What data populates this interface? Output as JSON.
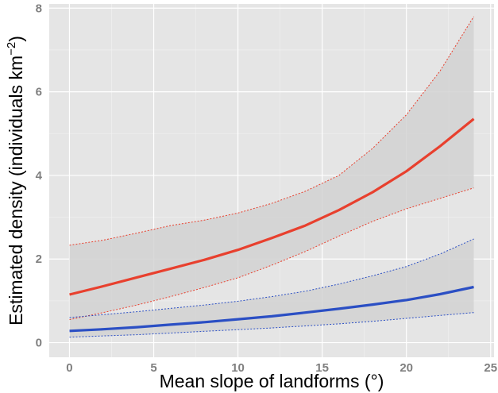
{
  "chart_data": {
    "type": "line",
    "title": "",
    "xlabel": "Mean slope of landforms (°)",
    "ylabel": "Estimated density (individuals km",
    "ylabel_superscript": "−2",
    "ylabel_close": ")",
    "xlim": [
      -1.2,
      25.2
    ],
    "ylim": [
      -0.35,
      8.1
    ],
    "x_ticks": [
      0,
      5,
      10,
      15,
      20,
      25
    ],
    "y_ticks": [
      0,
      2,
      4,
      6,
      8
    ],
    "grid": true,
    "legend": "none",
    "panel_background": "#e5e5e5",
    "band_color": "#d2d2d2",
    "series": [
      {
        "color": "#e8402e",
        "x": [
          0,
          2,
          4,
          6,
          8,
          10,
          12,
          14,
          16,
          18,
          20,
          22,
          24
        ],
        "y": [
          1.15,
          1.35,
          1.56,
          1.77,
          1.98,
          2.22,
          2.5,
          2.8,
          3.17,
          3.6,
          4.1,
          4.7,
          5.35
        ],
        "lower": [
          0.55,
          0.72,
          0.9,
          1.1,
          1.32,
          1.55,
          1.85,
          2.18,
          2.55,
          2.9,
          3.2,
          3.45,
          3.7
        ],
        "upper": [
          2.33,
          2.45,
          2.62,
          2.8,
          2.93,
          3.1,
          3.33,
          3.62,
          4.0,
          4.65,
          5.45,
          6.5,
          7.8
        ]
      },
      {
        "color": "#2b4fc4",
        "x": [
          0,
          2,
          4,
          6,
          8,
          10,
          12,
          14,
          16,
          18,
          20,
          22,
          24
        ],
        "y": [
          0.28,
          0.32,
          0.37,
          0.43,
          0.49,
          0.56,
          0.63,
          0.72,
          0.81,
          0.91,
          1.02,
          1.16,
          1.33
        ],
        "lower": [
          0.13,
          0.16,
          0.19,
          0.23,
          0.27,
          0.31,
          0.35,
          0.4,
          0.45,
          0.51,
          0.58,
          0.65,
          0.72
        ],
        "upper": [
          0.6,
          0.67,
          0.74,
          0.82,
          0.9,
          0.99,
          1.1,
          1.23,
          1.4,
          1.6,
          1.82,
          2.12,
          2.48
        ]
      }
    ]
  }
}
